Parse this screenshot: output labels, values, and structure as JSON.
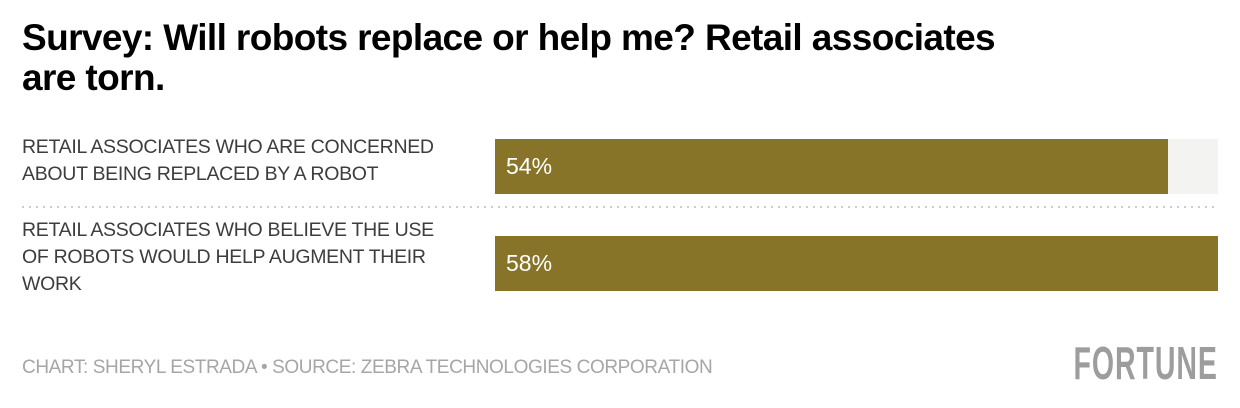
{
  "page": {
    "title": "Survey: Will robots replace or help me? Retail associates\nare torn.",
    "footer": {
      "credit": "CHART: SHERYL ESTRADA • SOURCE: ZEBRA TECHNOLOGIES CORPORATION",
      "brand": "FORTUNE"
    }
  },
  "rows": [
    {
      "label": "RETAIL ASSOCIATES WHO ARE CONCERNED\nABOUT BEING REPLACED BY A ROBOT",
      "value_label": "54%"
    },
    {
      "label": "RETAIL ASSOCIATES WHO BELIEVE THE USE\nOF ROBOTS WOULD HELP AUGMENT THEIR\nWORK",
      "value_label": "58%"
    }
  ],
  "chart_data": {
    "type": "bar",
    "orientation": "horizontal",
    "title": "Survey: Will robots replace or help me? Retail associates are torn.",
    "categories": [
      "RETAIL ASSOCIATES WHO ARE CONCERNED ABOUT BEING REPLACED BY A ROBOT",
      "RETAIL ASSOCIATES WHO BELIEVE THE USE OF ROBOTS WOULD HELP AUGMENT THEIR WORK"
    ],
    "values": [
      54,
      58
    ],
    "value_labels": [
      "54%",
      "58%"
    ],
    "unit": "%",
    "xlim": [
      0,
      58
    ],
    "grid": false,
    "legend": false,
    "bar_color": "#877428",
    "track_color": "#f3f3f2",
    "value_label_color": "#ffffff"
  }
}
